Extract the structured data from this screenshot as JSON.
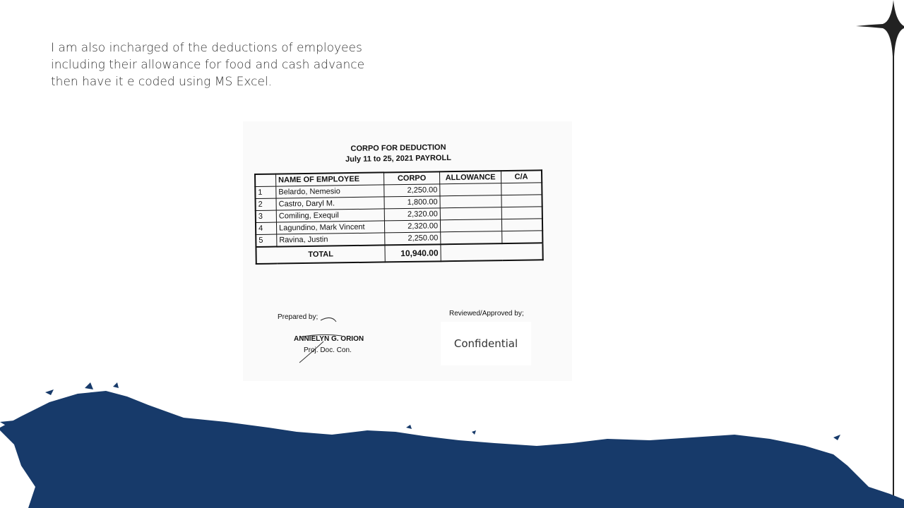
{
  "intro_lines": [
    "I am also incharged of the deductions of employees",
    "including their allowance for food and cash advance",
    "then have it e coded using MS Excel."
  ],
  "document": {
    "title": "CORPO FOR DEDUCTION",
    "subtitle": "July 11 to 25, 2021 PAYROLL",
    "headers": {
      "name": "NAME OF EMPLOYEE",
      "corpo": "CORPO",
      "allowance": "ALLOWANCE",
      "ca": "C/A"
    },
    "rows": [
      {
        "no": "1",
        "name": "Belardo, Nemesio",
        "corpo": "2,250.00"
      },
      {
        "no": "2",
        "name": "Castro, Daryl M.",
        "corpo": "1,800.00"
      },
      {
        "no": "3",
        "name": "Comiling, Exequil",
        "corpo": "2,320.00"
      },
      {
        "no": "4",
        "name": "Lagundino, Mark Vincent",
        "corpo": "2,320.00"
      },
      {
        "no": "5",
        "name": "Ravina, Justin",
        "corpo": "2,250.00"
      }
    ],
    "total_label": "TOTAL",
    "total_value": "10,940.00",
    "prepared_label": "Prepared by;",
    "preparer_name": "ANNIELYN G. ORION",
    "preparer_title": "Proj. Doc. Con.",
    "reviewed_label": "Reviewed/Approved by;",
    "confidential": "Confidential"
  },
  "colors": {
    "splash": "#173a6a",
    "star": "#222222"
  }
}
